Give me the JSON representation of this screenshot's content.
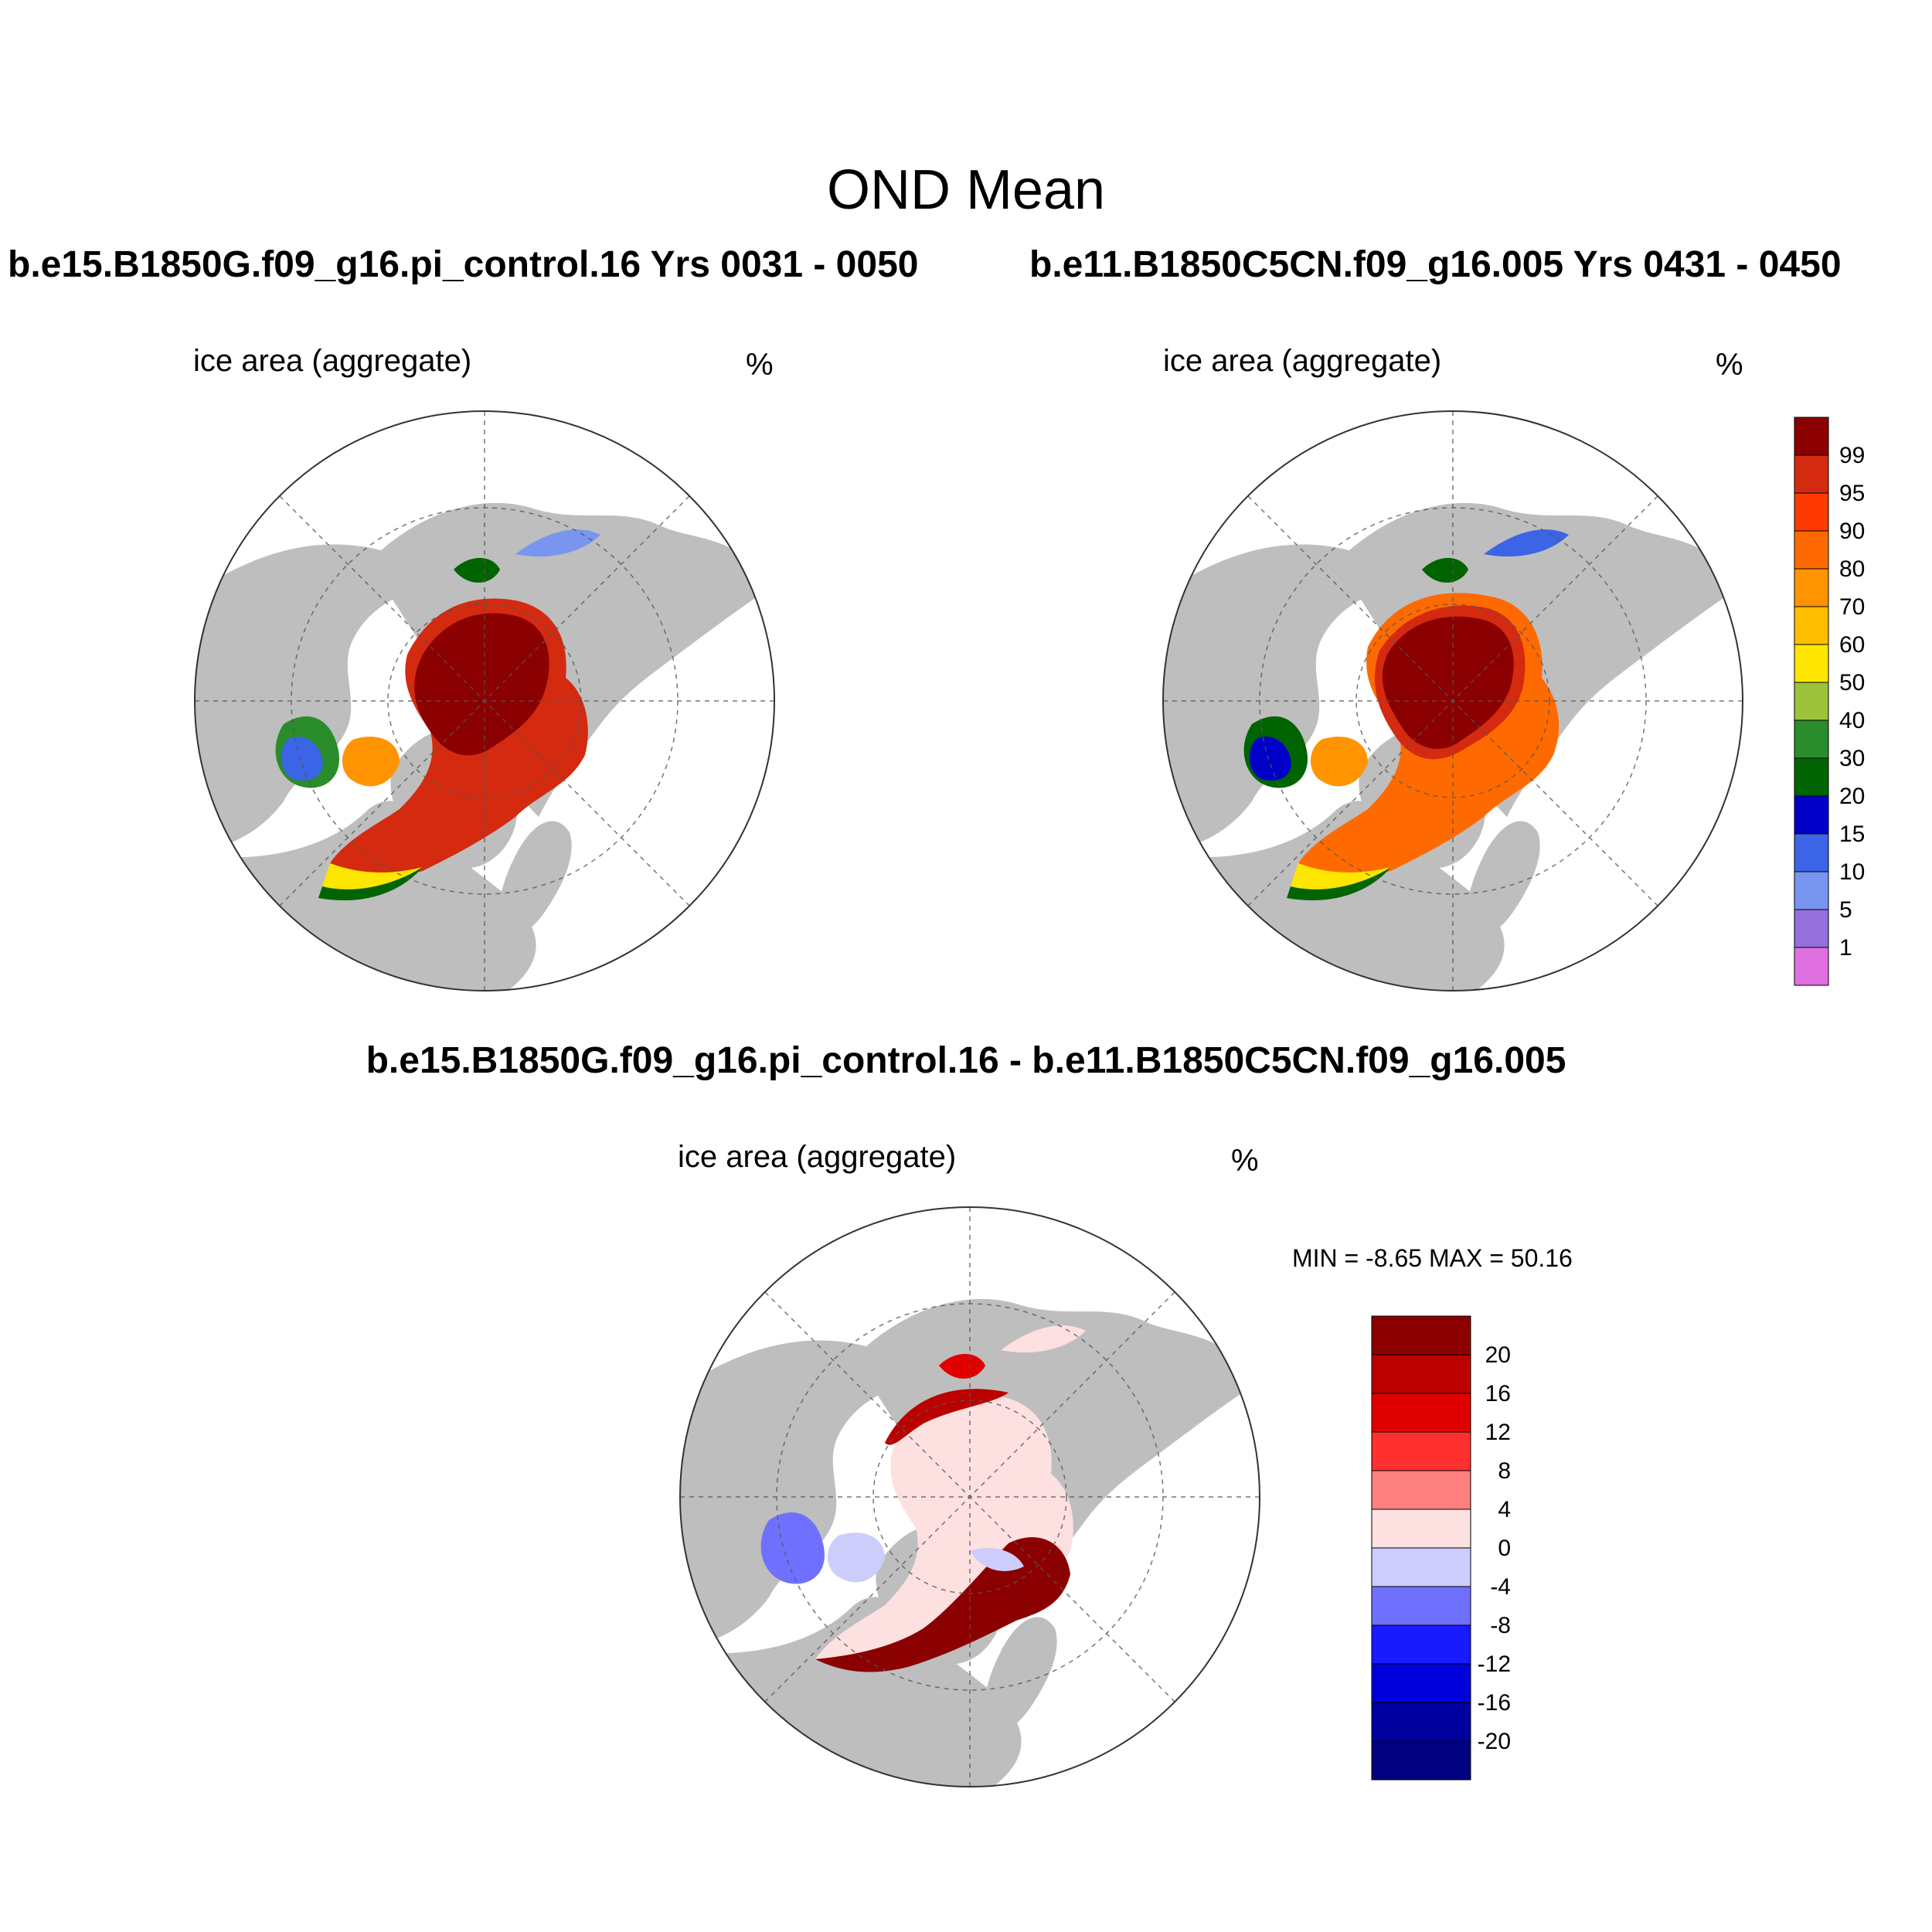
{
  "figure": {
    "title": "OND Mean",
    "panels": [
      {
        "title": "b.e15.B1850G.f09_g16.pi_control.16  Yrs 0031 - 0050",
        "variable": "ice area  (aggregate)",
        "units": "%"
      },
      {
        "title": "b.e11.B1850C5CN.f09_g16.005  Yrs 0431 - 0450",
        "variable": "ice area  (aggregate)",
        "units": "%"
      },
      {
        "title": "b.e15.B1850G.f09_g16.pi_control.16 - b.e11.B1850C5CN.f09_g16.005",
        "variable": "ice area  (aggregate)",
        "units": "%",
        "stats": "MIN =  -8.65 MAX =  50.16"
      }
    ]
  },
  "chart_data": [
    {
      "type": "heatmap",
      "title": "b.e15.B1850G.f09_g16.pi_control.16  Yrs 0031 - 0050",
      "colorbar": {
        "levels": [
          "99",
          "95",
          "90",
          "80",
          "70",
          "60",
          "50",
          "40",
          "30",
          "20",
          "15",
          "10",
          "5",
          "1"
        ],
        "colors": [
          "#8b0000",
          "#d42a10",
          "#ff3a00",
          "#ff6a00",
          "#ff9300",
          "#ffbf00",
          "#ffe600",
          "#9cc33a",
          "#2a8c2a",
          "#006400",
          "#0000c8",
          "#3c64e6",
          "#7896f0",
          "#9370db",
          "#e070e0"
        ]
      }
    },
    {
      "type": "heatmap",
      "title": "b.e11.B1850C5CN.f09_g16.005  Yrs 0431 - 0450"
    },
    {
      "type": "heatmap",
      "title": "b.e15.B1850G.f09_g16.pi_control.16 - b.e11.B1850C5CN.f09_g16.005",
      "min": -8.65,
      "max": 50.16,
      "colorbar": {
        "levels": [
          "20",
          "16",
          "12",
          "8",
          "4",
          "0",
          "-4",
          "-8",
          "-12",
          "-16",
          "-20"
        ],
        "colors": [
          "#8b0000",
          "#bb0000",
          "#e00000",
          "#ff3030",
          "#ff8080",
          "#fde0e0",
          "#cccdfa",
          "#7070ff",
          "#1a1aff",
          "#0000dc",
          "#0000a0",
          "#000080"
        ]
      }
    }
  ]
}
